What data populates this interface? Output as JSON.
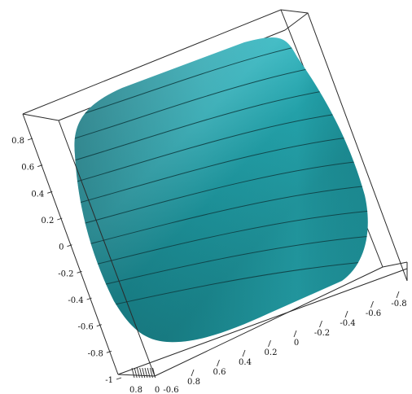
{
  "chart_data": {
    "type": "surface3d",
    "surface_color": "#3fb3bf",
    "surface_color_dark": "#1f7f86",
    "contour_line_color": "#0f3f44",
    "mesh_lines": 10,
    "z_axis_ticks": [
      "0.8",
      "0.6",
      "0.4",
      "0.2",
      "0",
      "-0.2",
      "-0.4",
      "-0.6",
      "-0.8",
      "-1"
    ],
    "x_axis_ticks": [
      "-0.8",
      "-0.6",
      "-0.4",
      "-0.2",
      "0",
      "0.2",
      "0.4",
      "0.6",
      "0.8"
    ],
    "y_axis_ticks": [
      "0.8",
      "0",
      "-0.6"
    ]
  }
}
